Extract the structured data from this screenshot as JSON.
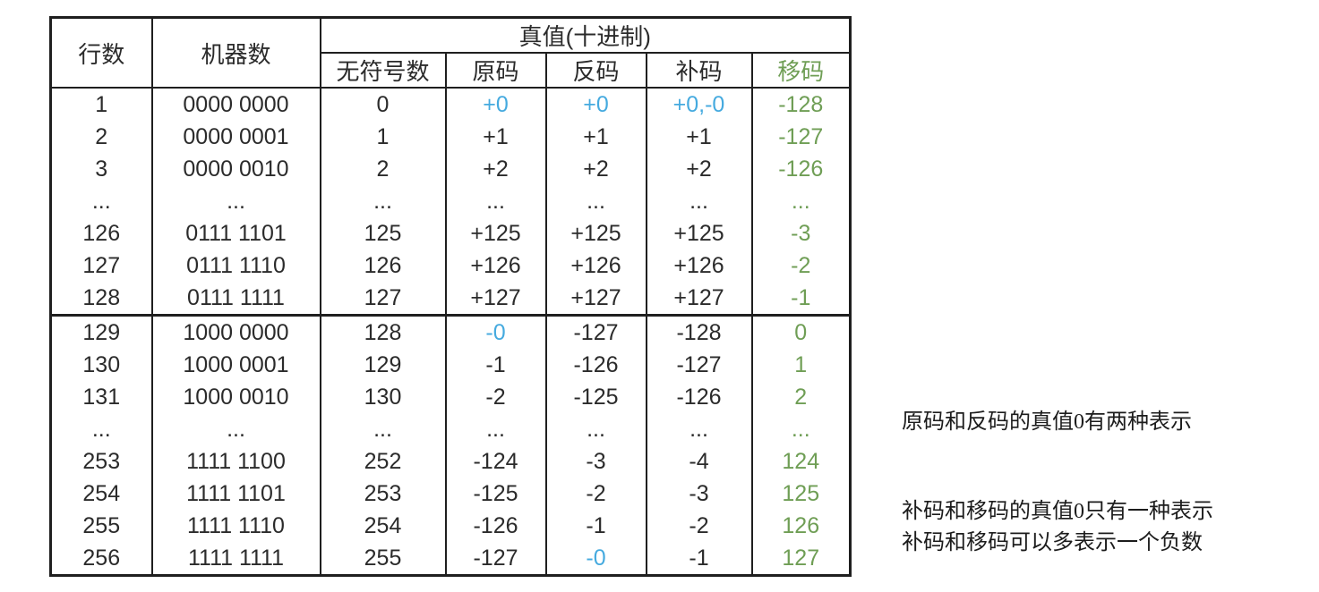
{
  "colors": {
    "blue": "#45aadf",
    "green": "#6f9e55",
    "text": "#2b2b2b",
    "border": "#1f1f1f",
    "background": "#ffffff"
  },
  "table": {
    "header": {
      "col_row": "行数",
      "col_machine": "机器数",
      "col_truth_group": "真值(十进制)",
      "sub_cols": [
        "无符号数",
        "原码",
        "反码",
        "补码",
        "移码"
      ]
    },
    "rows": [
      {
        "cells": [
          "1",
          "0000 0000",
          "0",
          "+0",
          "+0",
          "+0,-0",
          "-128"
        ],
        "colors": [
          null,
          null,
          null,
          "blue",
          "blue",
          "blue",
          "green"
        ],
        "divider": false
      },
      {
        "cells": [
          "2",
          "0000 0001",
          "1",
          "+1",
          "+1",
          "+1",
          "-127"
        ],
        "colors": [
          null,
          null,
          null,
          null,
          null,
          null,
          "green"
        ],
        "divider": false
      },
      {
        "cells": [
          "3",
          "0000 0010",
          "2",
          "+2",
          "+2",
          "+2",
          "-126"
        ],
        "colors": [
          null,
          null,
          null,
          null,
          null,
          null,
          "green"
        ],
        "divider": false
      },
      {
        "cells": [
          "...",
          "...",
          "...",
          "...",
          "...",
          "...",
          "..."
        ],
        "colors": [
          null,
          null,
          null,
          null,
          null,
          null,
          "green"
        ],
        "divider": false
      },
      {
        "cells": [
          "126",
          "0111 1101",
          "125",
          "+125",
          "+125",
          "+125",
          "-3"
        ],
        "colors": [
          null,
          null,
          null,
          null,
          null,
          null,
          "green"
        ],
        "divider": false
      },
      {
        "cells": [
          "127",
          "0111 1110",
          "126",
          "+126",
          "+126",
          "+126",
          "-2"
        ],
        "colors": [
          null,
          null,
          null,
          null,
          null,
          null,
          "green"
        ],
        "divider": false
      },
      {
        "cells": [
          "128",
          "0111 1111",
          "127",
          "+127",
          "+127",
          "+127",
          "-1"
        ],
        "colors": [
          null,
          null,
          null,
          null,
          null,
          null,
          "green"
        ],
        "divider": false
      },
      {
        "cells": [
          "129",
          "1000 0000",
          "128",
          "-0",
          "-127",
          "-128",
          "0"
        ],
        "colors": [
          null,
          null,
          null,
          "blue",
          null,
          null,
          "green"
        ],
        "divider": true
      },
      {
        "cells": [
          "130",
          "1000 0001",
          "129",
          "-1",
          "-126",
          "-127",
          "1"
        ],
        "colors": [
          null,
          null,
          null,
          null,
          null,
          null,
          "green"
        ],
        "divider": false
      },
      {
        "cells": [
          "131",
          "1000 0010",
          "130",
          "-2",
          "-125",
          "-126",
          "2"
        ],
        "colors": [
          null,
          null,
          null,
          null,
          null,
          null,
          "green"
        ],
        "divider": false
      },
      {
        "cells": [
          "...",
          "...",
          "...",
          "...",
          "...",
          "...",
          "..."
        ],
        "colors": [
          null,
          null,
          null,
          null,
          null,
          null,
          "green"
        ],
        "divider": false
      },
      {
        "cells": [
          "253",
          "1111 1100",
          "252",
          "-124",
          "-3",
          "-4",
          "124"
        ],
        "colors": [
          null,
          null,
          null,
          null,
          null,
          null,
          "green"
        ],
        "divider": false
      },
      {
        "cells": [
          "254",
          "1111 1101",
          "253",
          "-125",
          "-2",
          "-3",
          "125"
        ],
        "colors": [
          null,
          null,
          null,
          null,
          null,
          null,
          "green"
        ],
        "divider": false
      },
      {
        "cells": [
          "255",
          "1111 1110",
          "254",
          "-126",
          "-1",
          "-2",
          "126"
        ],
        "colors": [
          null,
          null,
          null,
          null,
          null,
          null,
          "green"
        ],
        "divider": false
      },
      {
        "cells": [
          "256",
          "1111 1111",
          "255",
          "-127",
          "-0",
          "-1",
          "127"
        ],
        "colors": [
          null,
          null,
          null,
          null,
          "blue",
          null,
          "green"
        ],
        "divider": false
      }
    ],
    "cell_names": [
      "cell-row-number",
      "cell-machine-number",
      "cell-unsigned",
      "cell-sign-magnitude",
      "cell-ones-complement",
      "cell-twos-complement",
      "cell-excess-code"
    ]
  },
  "notes": [
    "原码和反码的真值0有两种表示",
    "补码和移码的真值0只有一种表示",
    "补码和移码可以多表示一个负数"
  ]
}
